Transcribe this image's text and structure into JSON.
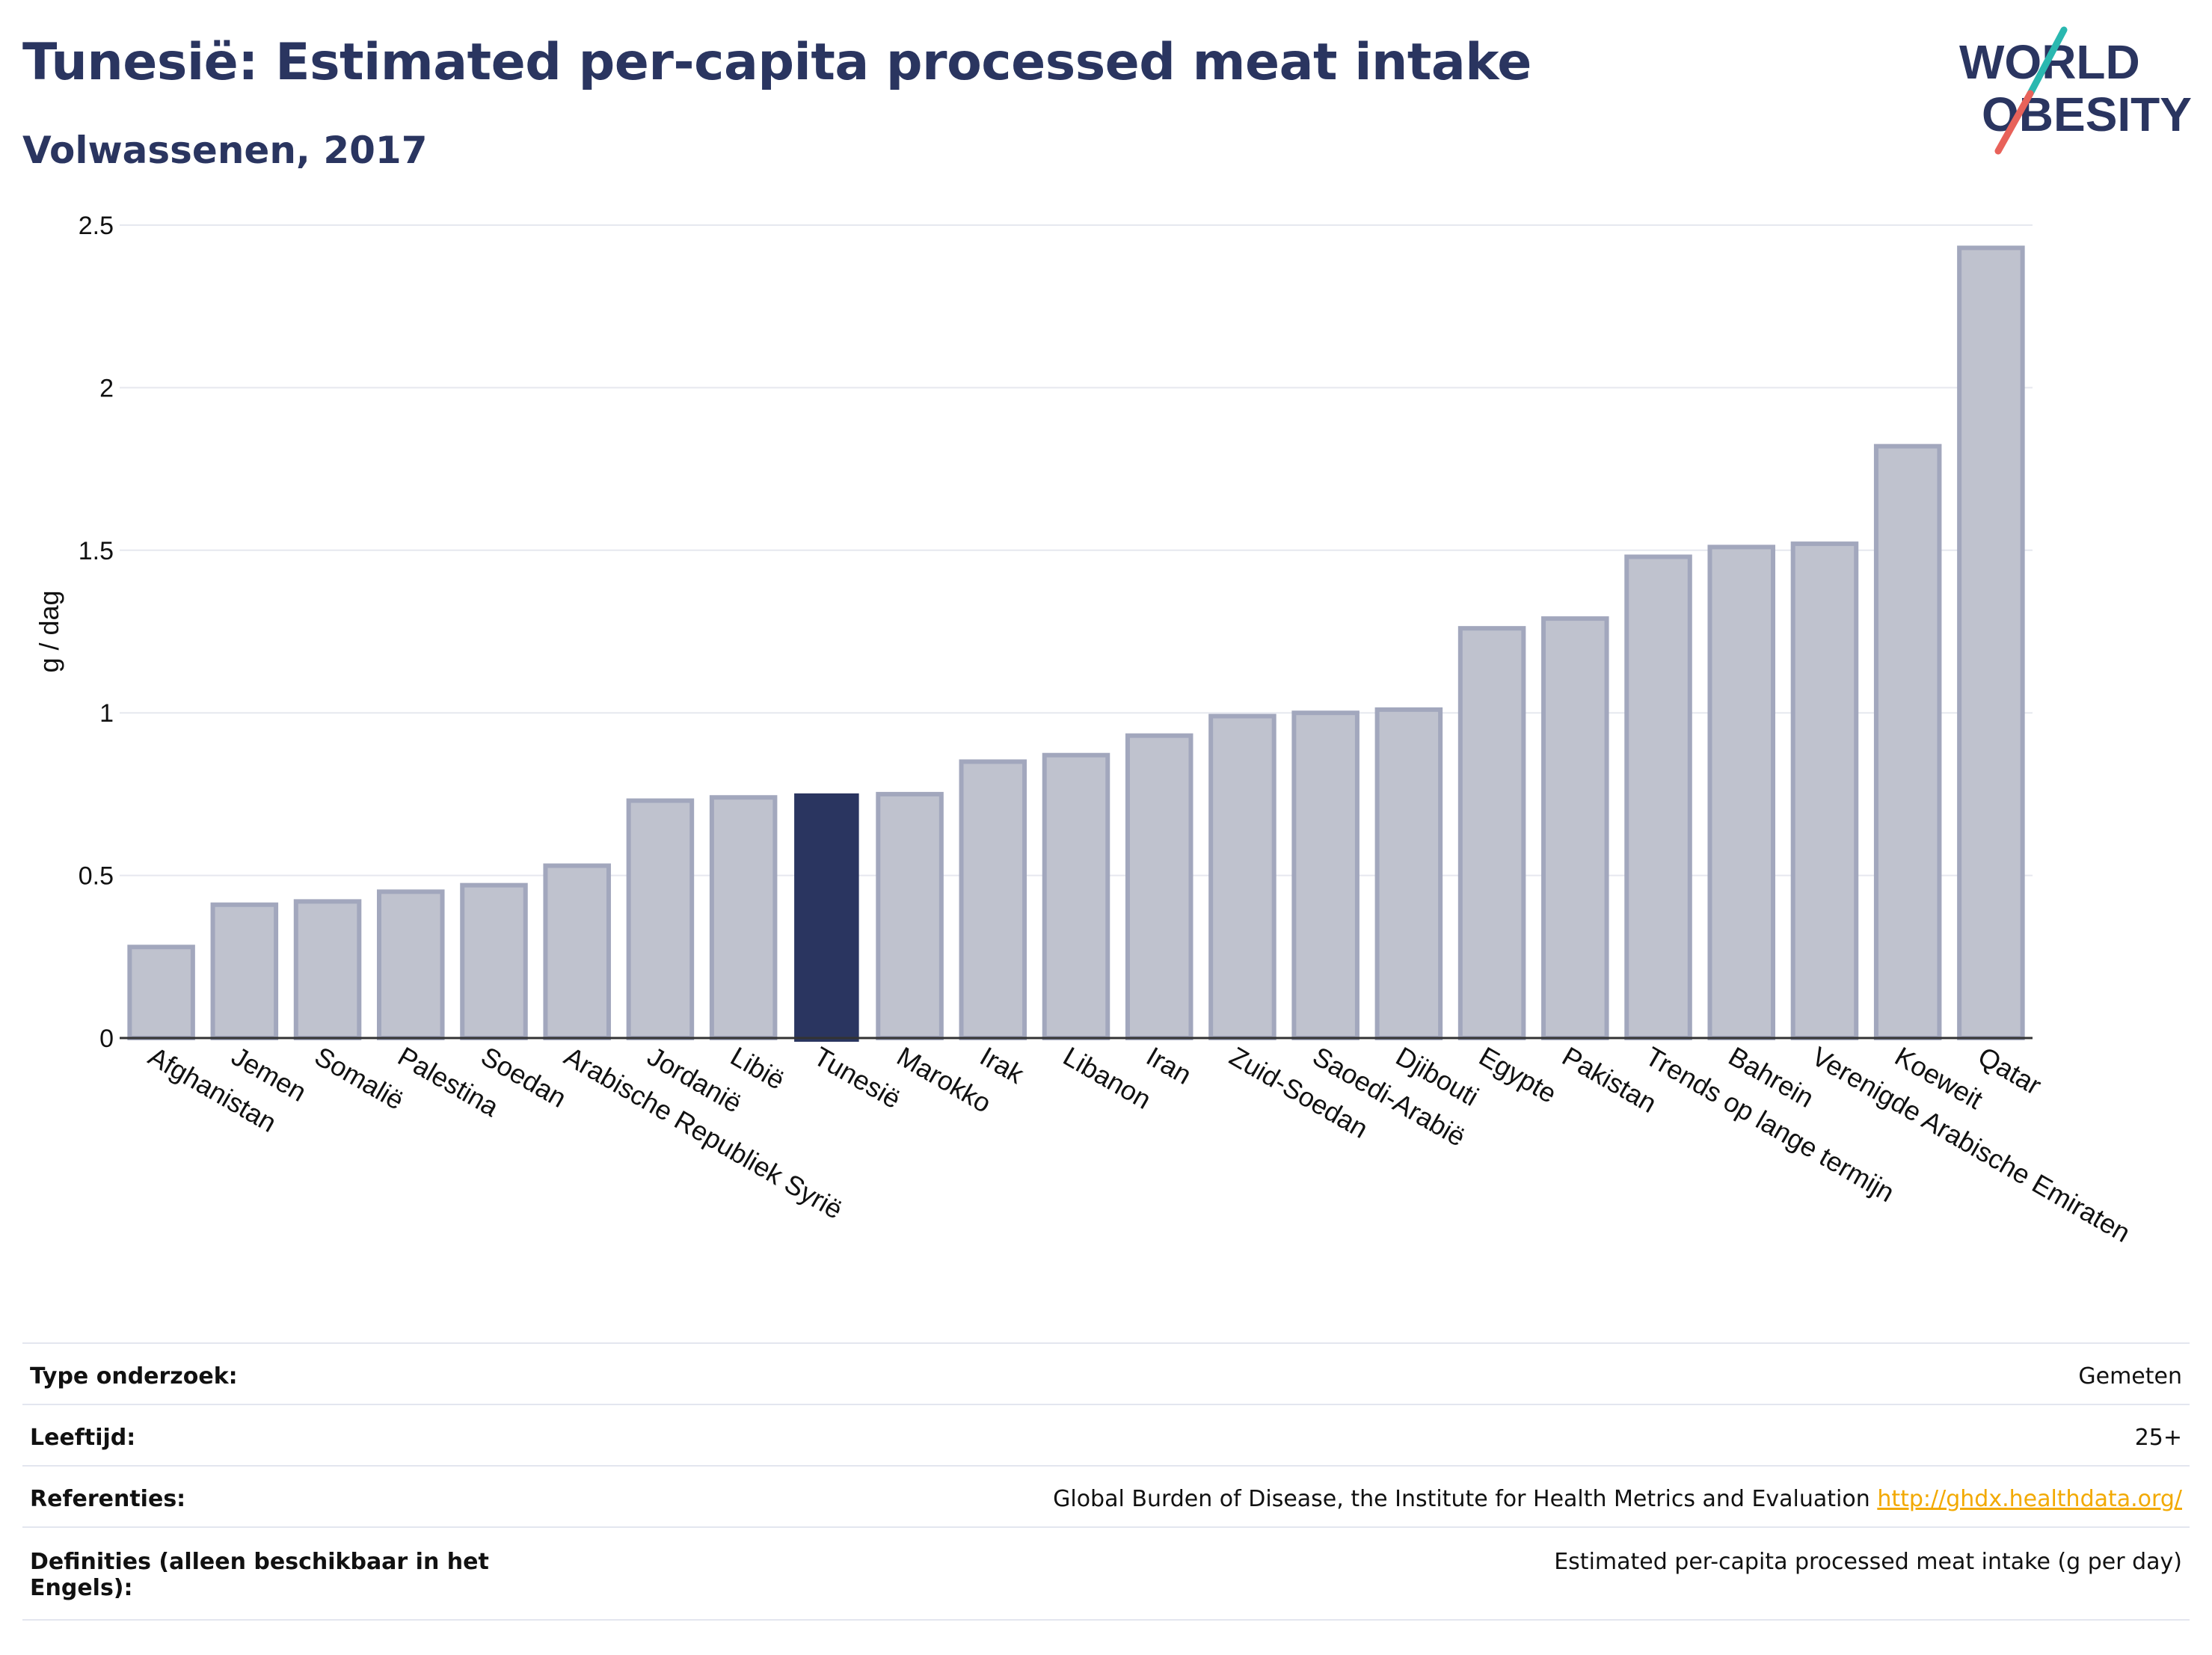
{
  "header": {
    "title": "Tunesië: Estimated per-capita processed meat intake",
    "subtitle": "Volwassenen, 2017"
  },
  "logo": {
    "line1": "WORLD",
    "line2": "OBESITY",
    "colors": {
      "text": "#2a3560",
      "slash_top": "#2ab8b0",
      "slash_bottom": "#e8625a"
    }
  },
  "chart_data": {
    "type": "bar",
    "ylabel": "g / dag",
    "xlabel": "",
    "ylim": [
      0,
      2.5
    ],
    "yticks": [
      0,
      0.5,
      1,
      1.5,
      2,
      2.5
    ],
    "ytick_labels": [
      "0",
      "0.5",
      "1",
      "1.5",
      "2",
      "2.5"
    ],
    "grid": true,
    "highlight": "Tunesië",
    "colors": {
      "highlight": "#2a3560",
      "bar_fill": "#bfc2ce",
      "bar_border": "#a2a7bd",
      "grid": "#e6e8ef"
    },
    "categories": [
      "Afghanistan",
      "Jemen",
      "Somalië",
      "Palestina",
      "Soedan",
      "Arabische Republiek Syrië",
      "Jordanië",
      "Libië",
      "Tunesië",
      "Marokko",
      "Irak",
      "Libanon",
      "Iran",
      "Zuid-Soedan",
      "Saoedi-Arabië",
      "Djibouti",
      "Egypte",
      "Pakistan",
      "Trends op lange termijn",
      "Bahrein",
      "Verenigde Arabische Emiraten",
      "Koeweit",
      "Qatar"
    ],
    "values": [
      0.28,
      0.41,
      0.42,
      0.45,
      0.47,
      0.53,
      0.73,
      0.74,
      0.75,
      0.75,
      0.85,
      0.87,
      0.93,
      0.99,
      1.0,
      1.01,
      1.26,
      1.29,
      1.48,
      1.51,
      1.52,
      1.82,
      2.43
    ]
  },
  "info": {
    "rows": [
      {
        "label": "Type onderzoek:",
        "value": "Gemeten"
      },
      {
        "label": "Leeftijd:",
        "value": "25+"
      },
      {
        "label": "Referenties:",
        "value": "Global Burden of Disease, the Institute for Health Metrics and Evaluation",
        "link": "http://ghdx.healthdata.org/"
      },
      {
        "label": "Definities (alleen beschikbaar in het Engels):",
        "value": "Estimated per-capita processed meat intake (g per day)"
      }
    ]
  }
}
